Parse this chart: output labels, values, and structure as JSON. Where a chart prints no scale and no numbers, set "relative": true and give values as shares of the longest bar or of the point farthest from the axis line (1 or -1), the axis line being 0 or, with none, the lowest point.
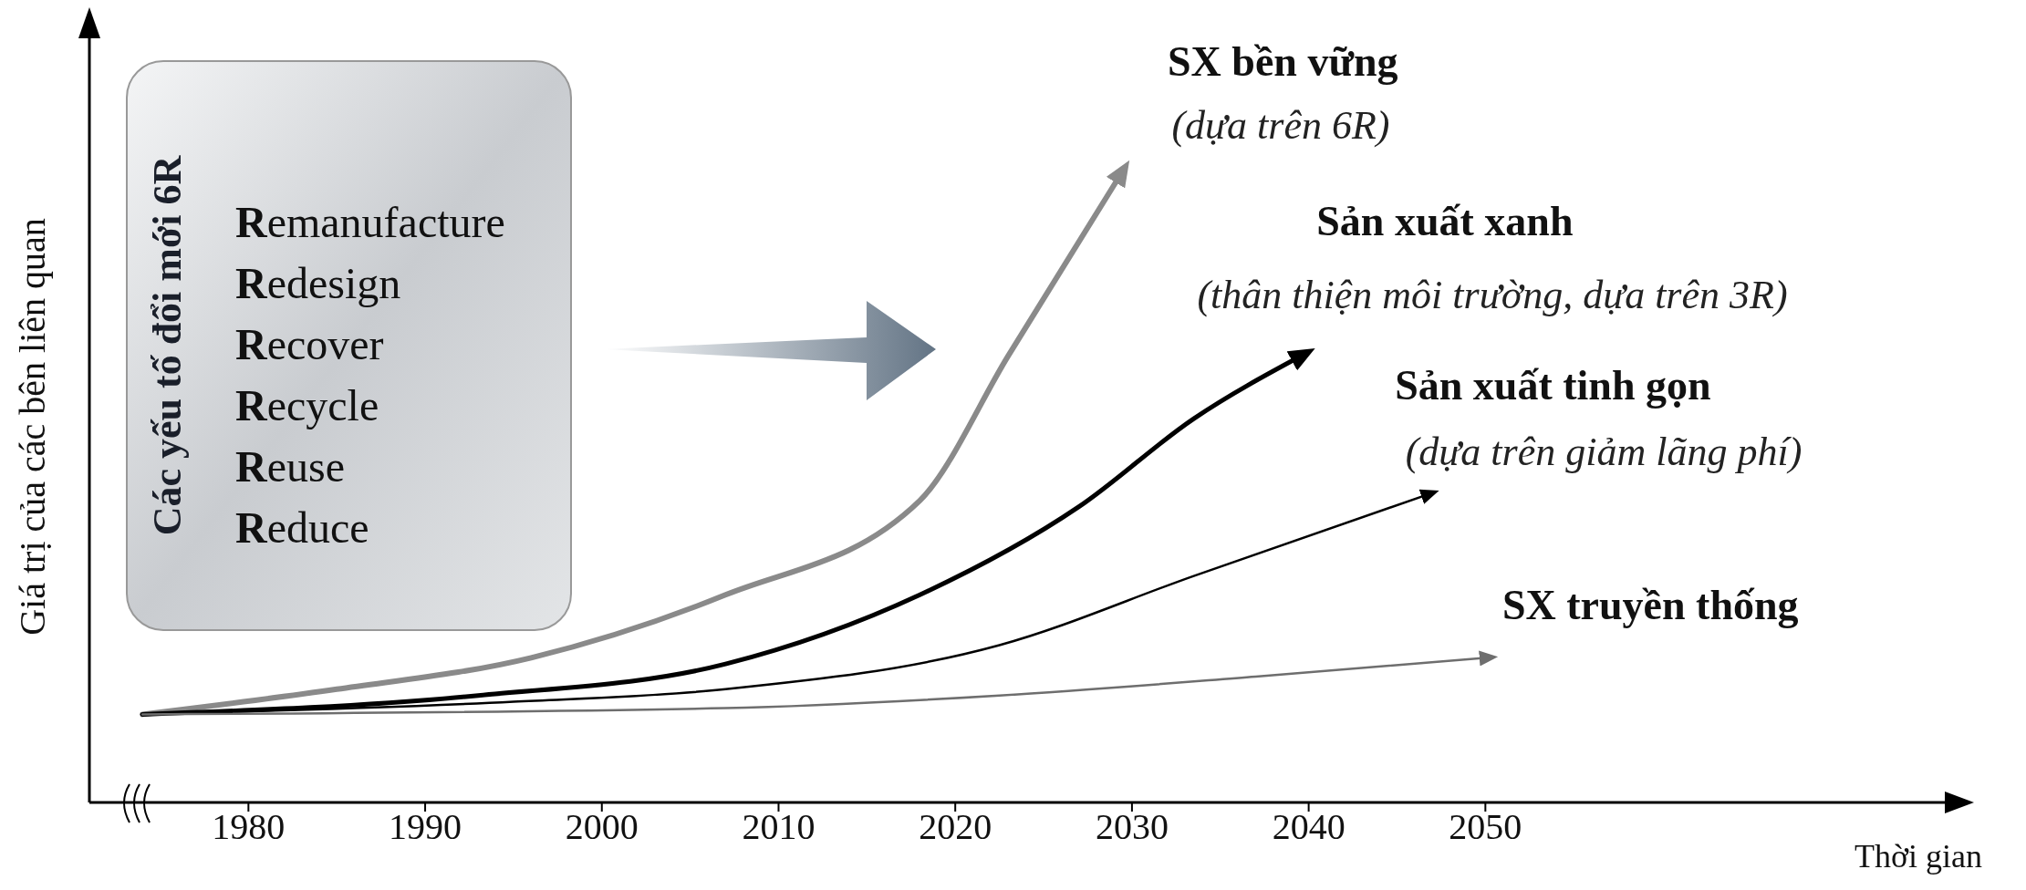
{
  "chart_data": {
    "type": "line",
    "relative": true,
    "xlabel": "Thời gian",
    "ylabel": "Giá trị của các bên liên quan",
    "xlim": [
      1971,
      2076
    ],
    "xticks": [
      1980,
      1990,
      2000,
      2010,
      2020,
      2030,
      2040,
      2050
    ],
    "series": [
      {
        "name": "SX bền vững",
        "color": "#8a8a8a",
        "x": [
          1974,
          1985,
          1996,
          2007,
          2018,
          2023,
          2029.4
        ],
        "values": [
          0.14,
          0.18,
          0.23,
          0.33,
          0.48,
          0.71,
          1
        ]
      },
      {
        "name": "Sản xuất xanh",
        "color": "#000000",
        "x": [
          1974,
          1993,
          2007,
          2018,
          2027,
          2033.5,
          2039.6
        ],
        "values": [
          0.14,
          0.17,
          0.22,
          0.33,
          0.47,
          0.61,
          0.71
        ]
      },
      {
        "name": "Sản xuất tinh gọn",
        "color": "#000000",
        "x": [
          1974,
          1995,
          2007,
          2022.5,
          2033.5,
          2046.8
        ],
        "values": [
          0.14,
          0.16,
          0.18,
          0.25,
          0.36,
          0.49
        ]
      },
      {
        "name": "SX truyền thống",
        "color": "#6e6e6e",
        "x": [
          1974,
          2007,
          2022.5,
          2037,
          2050.1
        ],
        "values": [
          0.14,
          0.15,
          0.17,
          0.2,
          0.23
        ]
      }
    ],
    "annotations": [
      "Các yếu tố đổi mới 6R",
      "Remanufacture",
      "Redesign",
      "Recover",
      "Recycle",
      "Reuse",
      "Reduce",
      "(dựa trên 6R)",
      "(thân thiện môi trường, dựa trên 3R)",
      "(dựa trên giảm lãng phí)"
    ]
  }
}
